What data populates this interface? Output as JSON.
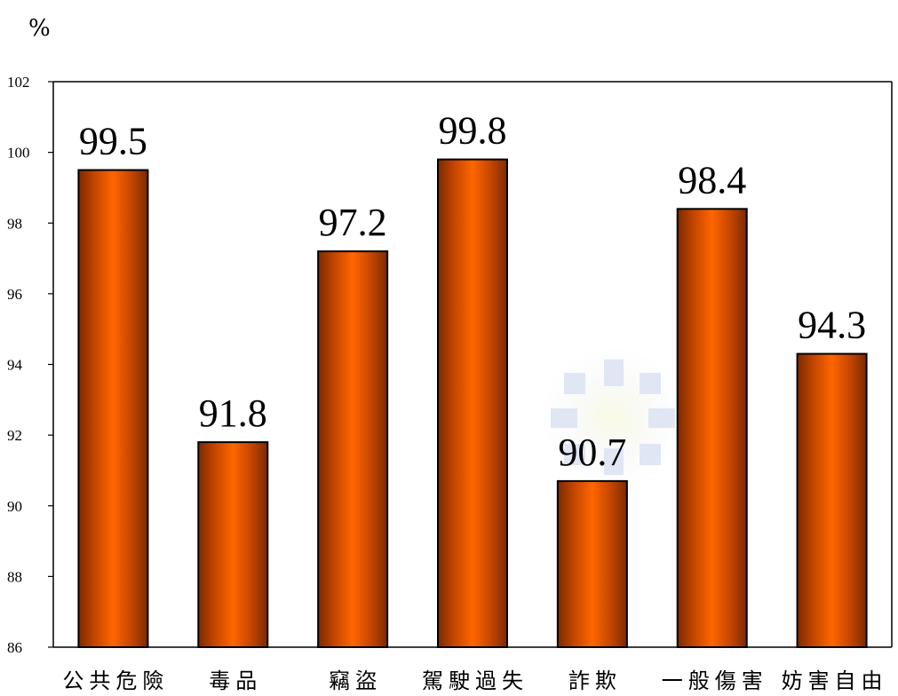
{
  "chart_data": {
    "type": "bar",
    "unit_label": "%",
    "categories": [
      "公共危險",
      "毒品",
      "竊盜",
      "駕駛過失",
      "詐欺",
      "一般傷害",
      "妨害自由"
    ],
    "values": [
      99.5,
      91.8,
      97.2,
      99.8,
      90.7,
      98.4,
      94.3
    ],
    "value_labels": [
      "99.5",
      "91.8",
      "97.2",
      "99.8",
      "90.7",
      "98.4",
      "94.3"
    ],
    "ylim": [
      86,
      102
    ],
    "yticks": [
      86,
      88,
      90,
      92,
      94,
      96,
      98,
      100,
      102
    ],
    "grid": false,
    "legend": "none",
    "colors": {
      "bar_center": "#ff6600",
      "bar_edge": "#7a2a00",
      "bar_outline": "#000000",
      "axis": "#000000"
    }
  }
}
